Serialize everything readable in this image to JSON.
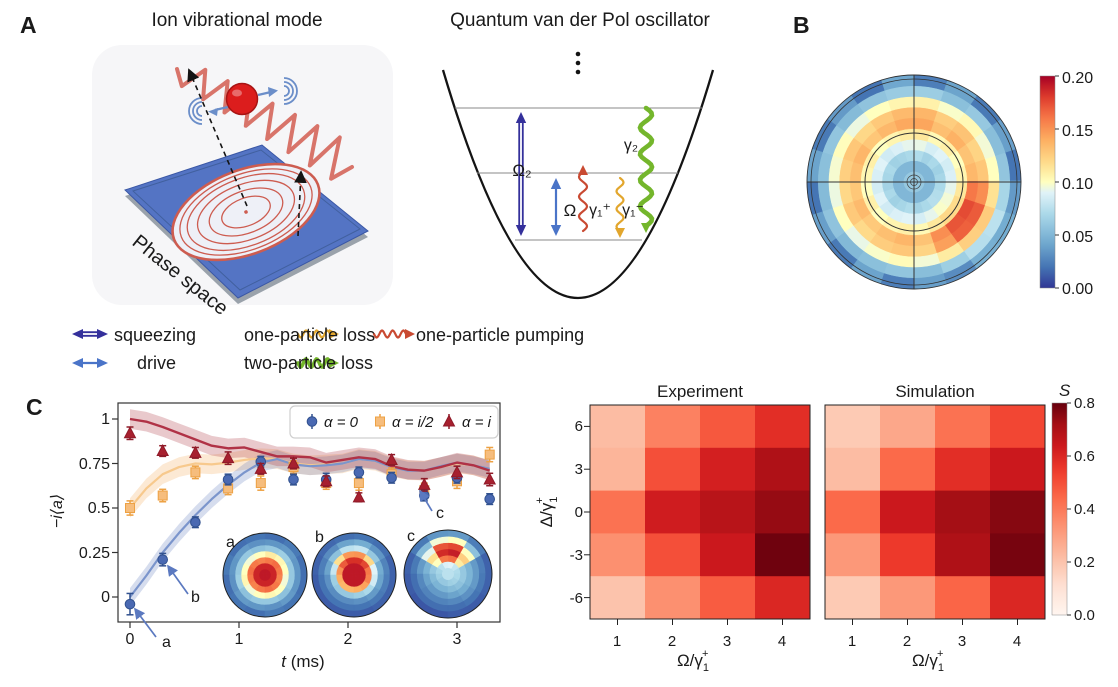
{
  "figure": {
    "panel_a": {
      "label": "A",
      "title_ion": "Ion vibrational mode",
      "title_vdp": "Quantum van der Pol oscillator",
      "phase_space": "Phase space",
      "level_labels": {
        "omega2": "Ω₂",
        "omega": "Ω",
        "gamma1_plus": "γ₁⁺",
        "gamma1_minus": "γ₁⁻",
        "gamma2": "γ₂"
      },
      "legend": {
        "squeezing": "squeezing",
        "drive": "drive",
        "one_particle_loss": "one-particle loss",
        "two_particle_loss": "two-particle loss",
        "one_particle_pumping": "one-particle pumping"
      },
      "colors": {
        "squeezing": "#34309b",
        "drive": "#4a74c8",
        "one_particle_loss": "#e2a62d",
        "two_particle_loss": "#74b62c",
        "one_particle_pumping": "#c94a32",
        "spring": "#d8746a",
        "ion": "#dc1d1d",
        "plate": "#5474c4"
      }
    },
    "panel_b": {
      "label": "B",
      "colorbar_ticks": [
        "0.20",
        "0.15",
        "0.10",
        "0.05",
        "0.00"
      ]
    },
    "panel_c": {
      "label": "C",
      "plot": {
        "ylabel": "−i⟨a⟩",
        "xlabel_t": "t",
        "xlabel_units": " (ms)",
        "xticks": [
          "0",
          "1",
          "2",
          "3"
        ],
        "yticks": [
          "1",
          "0.75",
          "0.5",
          "0.25",
          "0"
        ],
        "legend": [
          "α = 0",
          "α = i/2",
          "α = i"
        ],
        "inset_labels": [
          "a",
          "b",
          "c"
        ],
        "annotations": [
          "a",
          "b",
          "c"
        ]
      },
      "heatmaps": {
        "titles": [
          "Experiment",
          "Simulation"
        ],
        "xticks": [
          "1",
          "2",
          "3",
          "4"
        ],
        "yticks": [
          "6",
          "3",
          "0",
          "-3",
          "-6"
        ],
        "xlabel": {
          "base": "Ω/γ",
          "sub": "1",
          "sup": "+"
        },
        "ylabel": {
          "base": "Δ/γ",
          "sub": "1",
          "sup": "+"
        },
        "colorbar_title": "S",
        "colorbar_ticks": [
          "0.8",
          "0.6",
          "0.4",
          "0.2",
          "0.0"
        ]
      }
    }
  },
  "chart_data": [
    {
      "id": "panel_b_wigner_polar",
      "type": "heatmap",
      "coords": "polar",
      "colormap": "RdYlBu_r",
      "vmin": 0,
      "vmax": 0.2,
      "colorbar_ticks": [
        0.2,
        0.15,
        0.1,
        0.05,
        0.0
      ],
      "n_sectors": 20,
      "rings": [
        [
          0.06,
          0.06,
          0.06,
          0.06,
          0.06,
          0.06,
          0.06,
          0.06,
          0.06,
          0.06,
          0.06,
          0.06,
          0.06,
          0.06,
          0.06,
          0.06,
          0.06,
          0.06,
          0.06,
          0.06
        ],
        [
          0.05,
          0.05,
          0.05,
          0.05,
          0.05,
          0.05,
          0.05,
          0.05,
          0.05,
          0.05,
          0.05,
          0.05,
          0.05,
          0.05,
          0.05,
          0.05,
          0.05,
          0.05,
          0.05,
          0.05
        ],
        [
          0.068,
          0.065,
          0.07,
          0.066,
          0.072,
          0.07,
          0.067,
          0.065,
          0.07,
          0.068,
          0.066,
          0.07,
          0.065,
          0.068,
          0.072,
          0.066,
          0.07,
          0.074,
          0.073,
          0.07
        ],
        [
          0.088,
          0.085,
          0.09,
          0.086,
          0.093,
          0.092,
          0.088,
          0.084,
          0.09,
          0.087,
          0.085,
          0.09,
          0.084,
          0.088,
          0.09,
          0.086,
          0.092,
          0.098,
          0.096,
          0.092
        ],
        [
          0.105,
          0.1,
          0.108,
          0.103,
          0.112,
          0.11,
          0.105,
          0.1,
          0.108,
          0.104,
          0.1,
          0.107,
          0.1,
          0.105,
          0.108,
          0.103,
          0.112,
          0.12,
          0.118,
          0.112
        ],
        [
          0.135,
          0.13,
          0.138,
          0.132,
          0.143,
          0.142,
          0.135,
          0.128,
          0.136,
          0.132,
          0.128,
          0.134,
          0.127,
          0.132,
          0.136,
          0.13,
          0.152,
          0.172,
          0.175,
          0.16
        ],
        [
          0.128,
          0.122,
          0.13,
          0.125,
          0.136,
          0.134,
          0.127,
          0.12,
          0.128,
          0.124,
          0.12,
          0.127,
          0.119,
          0.125,
          0.128,
          0.122,
          0.145,
          0.168,
          0.17,
          0.152
        ],
        [
          0.1,
          0.096,
          0.103,
          0.098,
          0.107,
          0.105,
          0.1,
          0.094,
          0.101,
          0.097,
          0.094,
          0.1,
          0.093,
          0.098,
          0.102,
          0.096,
          0.11,
          0.124,
          0.126,
          0.115
        ],
        [
          0.058,
          0.054,
          0.06,
          0.055,
          0.063,
          0.062,
          0.057,
          0.052,
          0.058,
          0.055,
          0.052,
          0.057,
          0.051,
          0.055,
          0.058,
          0.054,
          0.064,
          0.074,
          0.076,
          0.068
        ],
        [
          0.02,
          0.038,
          0.022,
          0.04,
          0.024,
          0.042,
          0.02,
          0.036,
          0.022,
          0.04,
          0.02,
          0.038,
          0.022,
          0.04,
          0.024,
          0.038,
          0.03,
          0.046,
          0.044,
          0.036
        ]
      ]
    },
    {
      "id": "panel_c_dynamics",
      "type": "line",
      "xlabel": "t (ms)",
      "ylabel": "-i<a>",
      "xlim": [
        -0.12,
        3.45
      ],
      "ylim": [
        -0.14,
        1.09
      ],
      "xticks": [
        0,
        1,
        2,
        3
      ],
      "yticks": [
        0,
        0.25,
        0.5,
        0.75,
        1
      ],
      "legend_position": "upper right",
      "t": [
        0,
        0.3,
        0.6,
        0.9,
        1.2,
        1.5,
        1.8,
        2.1,
        2.4,
        2.7,
        3.0,
        3.3
      ],
      "series": [
        {
          "name": "α = 0",
          "marker": "circle",
          "color": "#4a69b2",
          "edge": "#31518f",
          "y": [
            -0.04,
            0.21,
            0.42,
            0.66,
            0.76,
            0.66,
            0.66,
            0.7,
            0.67,
            0.57,
            0.67,
            0.55
          ],
          "yerr": [
            0.06,
            0.035,
            0.03,
            0.03,
            0.03,
            0.03,
            0.035,
            0.03,
            0.03,
            0.03,
            0.03,
            0.03
          ]
        },
        {
          "name": "α = i/2",
          "marker": "square",
          "color": "#f6bd7d",
          "edge": "#eda143",
          "y": [
            0.5,
            0.57,
            0.7,
            0.61,
            0.64,
            0.73,
            0.64,
            0.64,
            0.69,
            0.6,
            0.65,
            0.8
          ],
          "yerr": [
            0.04,
            0.035,
            0.035,
            0.035,
            0.04,
            0.035,
            0.035,
            0.04,
            0.035,
            0.04,
            0.04,
            0.04
          ]
        },
        {
          "name": "α = i",
          "marker": "triangle",
          "color": "#a7202f",
          "edge": "#8f1a28",
          "y": [
            0.92,
            0.82,
            0.81,
            0.78,
            0.72,
            0.75,
            0.65,
            0.56,
            0.77,
            0.63,
            0.7,
            0.66
          ],
          "yerr": [
            0.035,
            0.03,
            0.03,
            0.035,
            0.03,
            0.03,
            0.03,
            0.025,
            0.03,
            0.035,
            0.035,
            0.035
          ]
        }
      ],
      "sim_lines": {
        "x": [
          0,
          0.15,
          0.3,
          0.45,
          0.6,
          0.75,
          0.9,
          1.05,
          1.2,
          1.35,
          1.5,
          1.65,
          1.8,
          1.95,
          2.1,
          2.25,
          2.4,
          2.55,
          2.7,
          2.85,
          3.0,
          3.15,
          3.3
        ],
        "blue": [
          0,
          0.12,
          0.25,
          0.36,
          0.46,
          0.55,
          0.63,
          0.7,
          0.755,
          0.775,
          0.745,
          0.735,
          0.74,
          0.75,
          0.775,
          0.765,
          0.73,
          0.71,
          0.71,
          0.735,
          0.755,
          0.74,
          0.72
        ],
        "red": [
          1.0,
          0.985,
          0.955,
          0.92,
          0.885,
          0.85,
          0.835,
          0.84,
          0.815,
          0.79,
          0.79,
          0.785,
          0.755,
          0.77,
          0.785,
          0.775,
          0.735,
          0.715,
          0.71,
          0.73,
          0.755,
          0.74,
          0.71
        ],
        "orange": [
          0.5,
          0.61,
          0.69,
          0.73,
          0.75,
          0.745,
          0.755,
          0.77,
          0.78,
          0.775,
          0.75,
          0.74,
          0.745,
          0.75,
          0.775,
          0.765,
          0.73,
          0.712,
          0.71,
          0.73,
          0.75,
          0.74,
          0.715
        ],
        "band_halfwidth": {
          "blue": 0.05,
          "orange": 0.055,
          "red": 0.055
        }
      }
    },
    {
      "id": "panel_c_insets",
      "type": "heatmap",
      "coords": "polar",
      "colormap": "RdYlBu_r",
      "vmin": 0,
      "vmax": 1,
      "items": [
        {
          "label": "a",
          "rings": [
            [
              0.96,
              0.96,
              0.96,
              0.96,
              0.96,
              0.96,
              0.96,
              0.96,
              0.96,
              0.96,
              0.96,
              0.96
            ],
            [
              0.94,
              0.94,
              0.94,
              0.94,
              0.94,
              0.94,
              0.94,
              0.94,
              0.94,
              0.94,
              0.94,
              0.94
            ],
            [
              0.8,
              0.82,
              0.8,
              0.78,
              0.8,
              0.82,
              0.8,
              0.78,
              0.8,
              0.82,
              0.8,
              0.78
            ],
            [
              0.5,
              0.52,
              0.55,
              0.5,
              0.48,
              0.5,
              0.52,
              0.48,
              0.5,
              0.52,
              0.5,
              0.48
            ],
            [
              0.3,
              0.32,
              0.3,
              0.28,
              0.3,
              0.3,
              0.32,
              0.28,
              0.3,
              0.3,
              0.28,
              0.3
            ],
            [
              0.17,
              0.18,
              0.17,
              0.16,
              0.18,
              0.17,
              0.16,
              0.18,
              0.17,
              0.16,
              0.18,
              0.17
            ],
            [
              0.09,
              0.11,
              0.09,
              0.1,
              0.09,
              0.11,
              0.09,
              0.1,
              0.09,
              0.11,
              0.1,
              0.09
            ]
          ]
        },
        {
          "label": "b",
          "rings": [
            [
              0.96,
              0.96,
              0.96,
              0.96,
              0.96,
              0.96,
              0.96,
              0.96,
              0.96,
              0.96,
              0.96,
              0.96
            ],
            [
              0.96,
              0.96,
              0.96,
              0.96,
              0.96,
              0.96,
              0.96,
              0.96,
              0.96,
              0.96,
              0.96,
              0.96
            ],
            [
              0.8,
              0.88,
              0.92,
              0.92,
              0.85,
              0.75,
              0.7,
              0.68,
              0.68,
              0.7,
              0.72,
              0.78
            ],
            [
              0.45,
              0.6,
              0.75,
              0.74,
              0.58,
              0.4,
              0.32,
              0.3,
              0.3,
              0.32,
              0.35,
              0.42
            ],
            [
              0.22,
              0.3,
              0.4,
              0.38,
              0.28,
              0.2,
              0.16,
              0.15,
              0.15,
              0.16,
              0.18,
              0.2
            ],
            [
              0.13,
              0.17,
              0.22,
              0.2,
              0.15,
              0.12,
              0.1,
              0.1,
              0.1,
              0.1,
              0.11,
              0.12
            ],
            [
              0.07,
              0.09,
              0.1,
              0.09,
              0.08,
              0.07,
              0.06,
              0.06,
              0.06,
              0.06,
              0.07,
              0.07
            ]
          ]
        },
        {
          "label": "c",
          "rings": [
            [
              0.38,
              0.38,
              0.38,
              0.38,
              0.38,
              0.38,
              0.38,
              0.38,
              0.38,
              0.38,
              0.38,
              0.38
            ],
            [
              0.36,
              0.4,
              0.45,
              0.44,
              0.38,
              0.34,
              0.32,
              0.3,
              0.3,
              0.32,
              0.33,
              0.35
            ],
            [
              0.3,
              0.55,
              0.82,
              0.8,
              0.5,
              0.3,
              0.26,
              0.24,
              0.24,
              0.26,
              0.28,
              0.3
            ],
            [
              0.24,
              0.62,
              0.95,
              0.93,
              0.58,
              0.24,
              0.2,
              0.18,
              0.18,
              0.2,
              0.22,
              0.24
            ],
            [
              0.18,
              0.5,
              0.88,
              0.86,
              0.46,
              0.18,
              0.14,
              0.13,
              0.13,
              0.14,
              0.16,
              0.18
            ],
            [
              0.12,
              0.28,
              0.5,
              0.48,
              0.26,
              0.11,
              0.09,
              0.09,
              0.09,
              0.09,
              0.1,
              0.11
            ],
            [
              0.07,
              0.12,
              0.18,
              0.17,
              0.11,
              0.07,
              0.06,
              0.05,
              0.05,
              0.06,
              0.06,
              0.07
            ]
          ]
        }
      ]
    },
    {
      "id": "experiment_s_heatmap",
      "type": "heatmap",
      "title": "Experiment",
      "colormap": "Reds",
      "vmin": 0,
      "vmax": 0.8,
      "colorbar_label": "S",
      "x": [
        1,
        2,
        3,
        4
      ],
      "y": [
        6,
        3,
        0,
        -3,
        -6
      ],
      "xlabel": "Ω/γ1+",
      "ylabel": "Δ/γ1+",
      "values": [
        [
          0.22,
          0.38,
          0.48,
          0.58
        ],
        [
          0.24,
          0.5,
          0.62,
          0.7
        ],
        [
          0.42,
          0.63,
          0.68,
          0.74
        ],
        [
          0.34,
          0.5,
          0.64,
          0.79
        ],
        [
          0.2,
          0.34,
          0.47,
          0.6
        ]
      ]
    },
    {
      "id": "simulation_s_heatmap",
      "type": "heatmap",
      "title": "Simulation",
      "colormap": "Reds",
      "vmin": 0,
      "vmax": 0.8,
      "colorbar_label": "S",
      "x": [
        1,
        2,
        3,
        4
      ],
      "y": [
        6,
        3,
        0,
        -3,
        -6
      ],
      "xlabel": "Ω/γ1+",
      "values": [
        [
          0.18,
          0.28,
          0.42,
          0.52
        ],
        [
          0.22,
          0.44,
          0.58,
          0.64
        ],
        [
          0.44,
          0.64,
          0.72,
          0.76
        ],
        [
          0.32,
          0.55,
          0.7,
          0.78
        ],
        [
          0.18,
          0.32,
          0.45,
          0.6
        ]
      ]
    }
  ]
}
